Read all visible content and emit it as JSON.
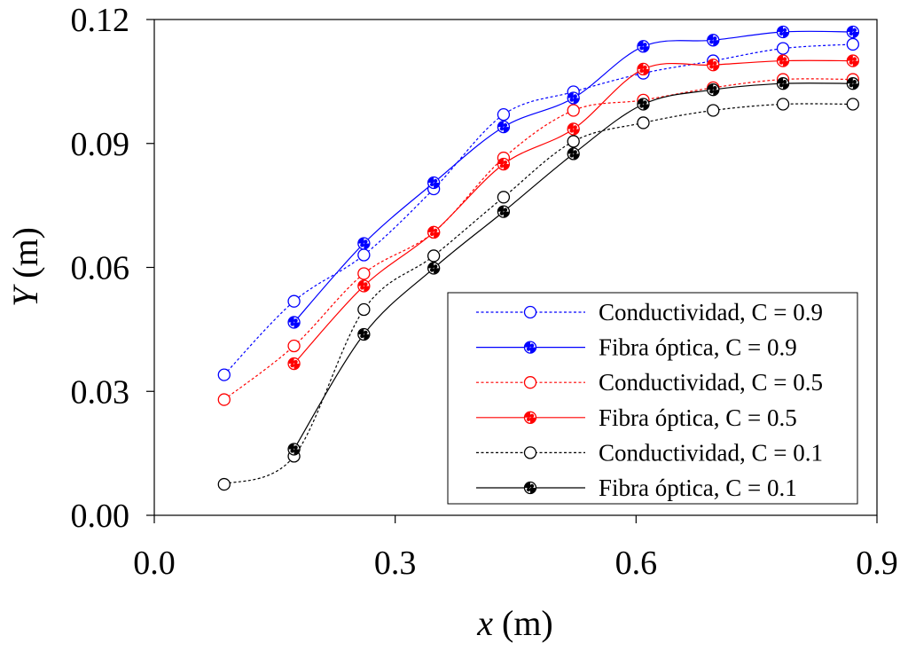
{
  "chart_data": {
    "type": "line",
    "title": "",
    "xlabel": {
      "var": "x",
      "unit": " (m)"
    },
    "ylabel": {
      "var": "Y",
      "unit": " (m)"
    },
    "xlim": [
      0,
      0.9
    ],
    "ylim": [
      0,
      0.12
    ],
    "xticks": [
      0.0,
      0.3,
      0.6,
      0.9
    ],
    "xtick_labels": [
      "0.0",
      "0.3",
      "0.6",
      "0.9"
    ],
    "yticks": [
      0.0,
      0.03,
      0.06,
      0.09,
      0.12
    ],
    "ytick_labels": [
      "0.00",
      "0.03",
      "0.06",
      "0.09",
      "0.12"
    ],
    "grid": false,
    "legend_position": "bottom-right",
    "series": [
      {
        "name": "Conductividad, C = 0.9",
        "color": "#0000ff",
        "line": "dashed",
        "marker": "open-circle",
        "x": [
          0.087,
          0.174,
          0.261,
          0.348,
          0.435,
          0.522,
          0.609,
          0.696,
          0.783,
          0.87
        ],
        "y": [
          0.034,
          0.0518,
          0.063,
          0.079,
          0.097,
          0.1025,
          0.107,
          0.11,
          0.113,
          0.114
        ]
      },
      {
        "name": "Fibra óptica, C = 0.9",
        "color": "#0000ff",
        "line": "solid",
        "marker": "filled-circle",
        "x": [
          0.174,
          0.261,
          0.348,
          0.435,
          0.522,
          0.609,
          0.696,
          0.783,
          0.87
        ],
        "y": [
          0.0467,
          0.0658,
          0.0805,
          0.094,
          0.101,
          0.1135,
          0.115,
          0.117,
          0.117
        ]
      },
      {
        "name": "Conductividad, C = 0.5",
        "color": "#ff0000",
        "line": "dashed",
        "marker": "open-circle",
        "x": [
          0.087,
          0.174,
          0.261,
          0.348,
          0.435,
          0.522,
          0.609,
          0.696,
          0.783,
          0.87
        ],
        "y": [
          0.028,
          0.041,
          0.0585,
          0.0685,
          0.0865,
          0.098,
          0.1005,
          0.1035,
          0.1055,
          0.1055
        ]
      },
      {
        "name": "Fibra óptica, C = 0.5",
        "color": "#ff0000",
        "line": "solid",
        "marker": "filled-circle",
        "x": [
          0.174,
          0.261,
          0.348,
          0.435,
          0.522,
          0.609,
          0.696,
          0.783,
          0.87
        ],
        "y": [
          0.0367,
          0.0555,
          0.0685,
          0.085,
          0.0935,
          0.108,
          0.109,
          0.11,
          0.11
        ]
      },
      {
        "name": "Conductividad, C = 0.1",
        "color": "#000000",
        "line": "dashed",
        "marker": "open-circle",
        "x": [
          0.087,
          0.174,
          0.261,
          0.348,
          0.435,
          0.522,
          0.609,
          0.696,
          0.783,
          0.87
        ],
        "y": [
          0.0075,
          0.0143,
          0.0498,
          0.0628,
          0.077,
          0.0905,
          0.095,
          0.098,
          0.0995,
          0.0995
        ]
      },
      {
        "name": "Fibra óptica, C = 0.1",
        "color": "#000000",
        "line": "solid",
        "marker": "filled-circle",
        "x": [
          0.174,
          0.261,
          0.348,
          0.435,
          0.522,
          0.609,
          0.696,
          0.783,
          0.87
        ],
        "y": [
          0.016,
          0.0438,
          0.0598,
          0.0735,
          0.0875,
          0.0995,
          0.103,
          0.1045,
          0.1045
        ]
      }
    ]
  }
}
